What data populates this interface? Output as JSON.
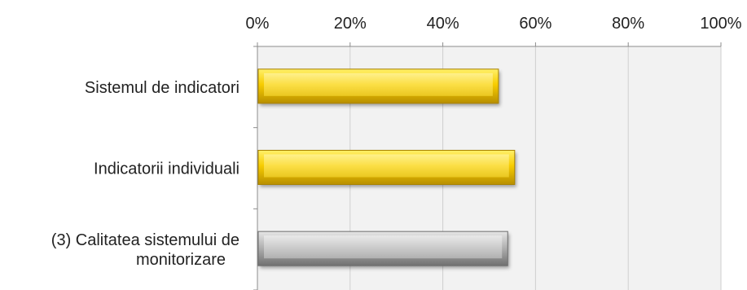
{
  "chart_data": {
    "type": "bar",
    "orientation": "horizontal",
    "categories": [
      [
        "Sistemul de indicatori"
      ],
      [
        "Indicatorii individuali"
      ],
      [
        "(3) Calitatea sistemului de",
        "monitorizare"
      ]
    ],
    "values": [
      52,
      55.5,
      54
    ],
    "bar_colors": [
      "#f5c400",
      "#f5c400",
      "#a6a6a6"
    ],
    "x_ticks": [
      "0%",
      "20%",
      "40%",
      "60%",
      "80%",
      "100%"
    ],
    "xlim": [
      0,
      100
    ],
    "x_axis_position": "top",
    "grid": true,
    "plot_background": "#f2f2f2",
    "title": "",
    "xlabel": "",
    "ylabel": ""
  }
}
